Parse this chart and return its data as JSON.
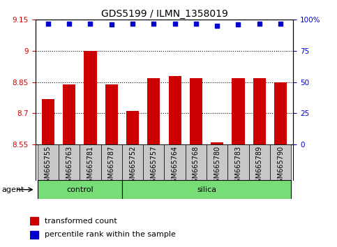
{
  "title": "GDS5199 / ILMN_1358019",
  "samples": [
    "GSM665755",
    "GSM665763",
    "GSM665781",
    "GSM665787",
    "GSM665752",
    "GSM665757",
    "GSM665764",
    "GSM665768",
    "GSM665780",
    "GSM665783",
    "GSM665789",
    "GSM665790"
  ],
  "bar_values": [
    8.77,
    8.84,
    9.0,
    8.84,
    8.71,
    8.87,
    8.88,
    8.87,
    8.56,
    8.87,
    8.87,
    8.85
  ],
  "percentile_values": [
    97,
    97,
    97,
    96,
    97,
    97,
    97,
    97,
    95,
    96,
    97,
    97
  ],
  "control_count": 4,
  "silica_count": 8,
  "ylim_left": [
    8.55,
    9.15
  ],
  "ylim_right": [
    0,
    100
  ],
  "yticks_left": [
    8.55,
    8.7,
    8.85,
    9.0,
    9.15
  ],
  "yticks_right": [
    0,
    25,
    50,
    75,
    100
  ],
  "ytick_labels_left": [
    "8.55",
    "8.7",
    "8.85",
    "9",
    "9.15"
  ],
  "ytick_labels_right": [
    "0",
    "25",
    "50",
    "75",
    "100%"
  ],
  "bar_color": "#cc0000",
  "dot_color": "#0000cc",
  "control_color": "#77dd77",
  "silica_color": "#77dd77",
  "bg_color": "#c8c8c8",
  "agent_label": "agent",
  "control_label": "control",
  "silica_label": "silica",
  "legend_bar_label": "transformed count",
  "legend_dot_label": "percentile rank within the sample",
  "grid_color": "black",
  "title_fontsize": 10,
  "tick_fontsize": 7.5,
  "label_fontsize": 8
}
